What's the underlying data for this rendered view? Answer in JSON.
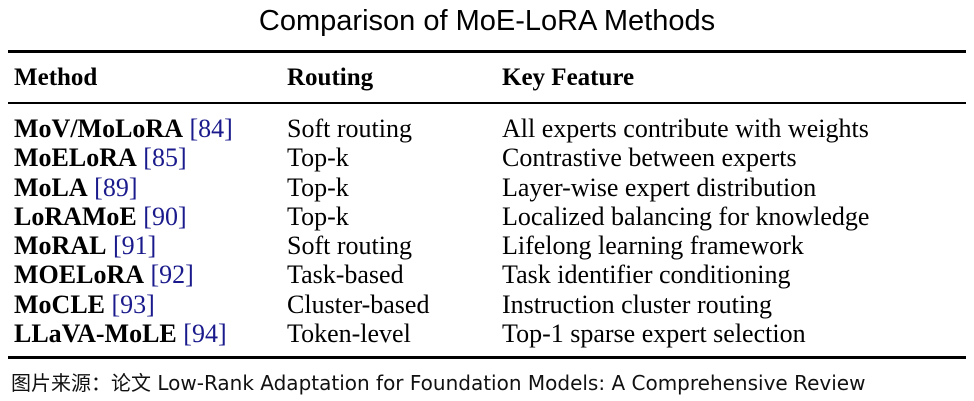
{
  "title": "Comparison of MoE-LoRA Methods",
  "headers": {
    "method": "Method",
    "routing": "Routing",
    "key_feature": "Key Feature"
  },
  "rows": [
    {
      "name": "MoV/MoLoRA",
      "ref": "[84]",
      "routing": "Soft routing",
      "feature": "All experts contribute with weights"
    },
    {
      "name": "MoELoRA",
      "ref": "[85]",
      "routing": "Top-k",
      "feature": "Contrastive between experts"
    },
    {
      "name": "MoLA",
      "ref": "[89]",
      "routing": "Top-k",
      "feature": "Layer-wise expert distribution"
    },
    {
      "name": "LoRAMoE",
      "ref": "[90]",
      "routing": "Top-k",
      "feature": "Localized balancing for knowledge"
    },
    {
      "name": "MoRAL",
      "ref": "[91]",
      "routing": "Soft routing",
      "feature": "Lifelong learning framework"
    },
    {
      "name": "MOELoRA",
      "ref": "[92]",
      "routing": "Task-based",
      "feature": "Task identifier conditioning"
    },
    {
      "name": "MoCLE",
      "ref": "[93]",
      "routing": "Cluster-based",
      "feature": "Instruction cluster routing"
    },
    {
      "name": "LLaVA-MoLE",
      "ref": "[94]",
      "routing": "Token-level",
      "feature": "Top-1 sparse expert selection"
    }
  ],
  "caption": "图片来源：论文 Low-Rank Adaptation for Foundation Models: A Comprehensive Review",
  "colors": {
    "text": "#000000",
    "reference_link": "#1a1a8c",
    "rule": "#000000"
  }
}
